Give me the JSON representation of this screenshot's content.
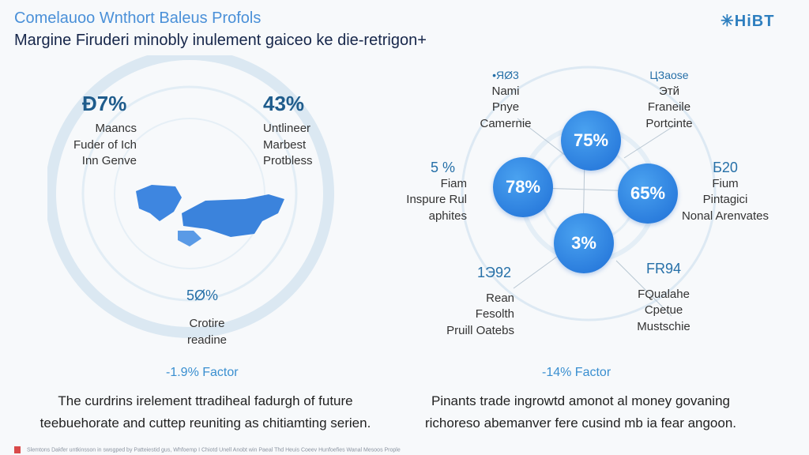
{
  "header": {
    "title": "Comelauoo Wnthort Baleus Profols",
    "subtitle": "Margine Firuderi minobly inulement gaiceo ke die-retrigon+",
    "logo": "HiBT"
  },
  "left": {
    "stats": [
      {
        "value": "Ð7%",
        "lines": [
          "Maancs",
          "Fuder of Ich",
          "Inn Genve"
        ]
      },
      {
        "value": "43%",
        "lines": [
          "Untlineer",
          "Marbest",
          "Protbless"
        ]
      },
      {
        "value": "5Ø%",
        "lines": [
          "Crotire",
          "readine"
        ]
      }
    ],
    "factor": "-1.9% Factor",
    "paragraph": [
      "The curdrins irelement ttradiheal fadurgh of future",
      "teebuehorate and cuttep reuniting as chitiamting serien."
    ]
  },
  "right": {
    "bubbles": [
      "75%",
      "78%",
      "65%",
      "3%"
    ],
    "stats": [
      {
        "value": "•ЯØ3",
        "lines": [
          "Nami",
          "Pnye",
          "Camernie"
        ]
      },
      {
        "value": "ЦЗaose",
        "lines": [
          "Этй",
          "Franeile",
          "Portcinte"
        ]
      },
      {
        "value": "5 %",
        "lines": [
          "Fiam",
          "Inspure Rul",
          "aphites"
        ]
      },
      {
        "value": "Б20",
        "lines": [
          "Fium",
          "Pintagici",
          "Nonal Arenvates"
        ]
      },
      {
        "value": "1Э92",
        "lines": [
          "Rean",
          "Fesolth",
          "Pruill Oatebs"
        ]
      },
      {
        "value": "FR94",
        "lines": [
          "FQualahe",
          "Cpetue",
          "Mustschie"
        ]
      }
    ],
    "factor": "-14% Factor",
    "paragraph": [
      "Pinants trade ingrowtd amonot al money govaning",
      "richoreso abemanver fere cusind mb ia fear angoon."
    ]
  },
  "footer": "Slemtons Dakfer untkinsson in swsgped by Patteiestid gus, Whfoemp I Chiotd Unell Anobt win Paeal Thd Heuis Coeev Hunfoefies Wanal Mesoos Prople"
}
